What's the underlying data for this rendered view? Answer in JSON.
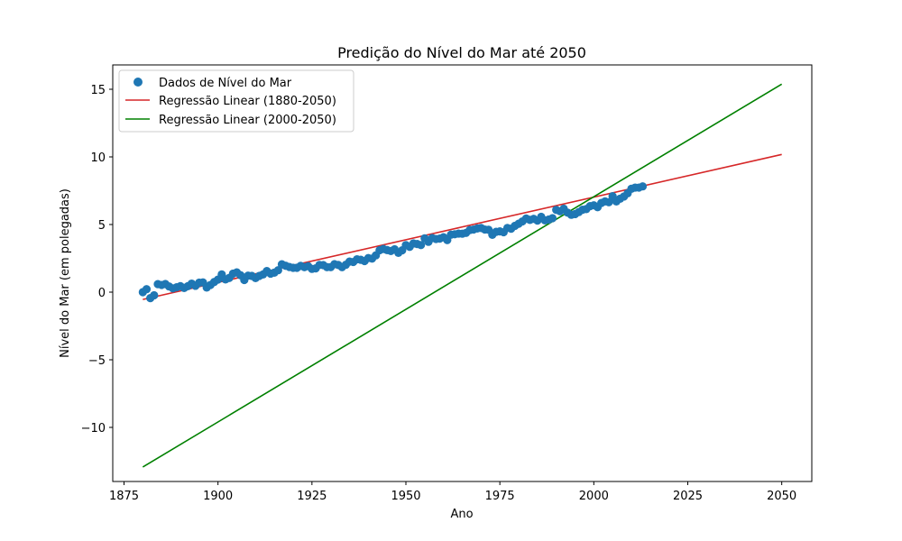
{
  "chart_data": {
    "type": "scatter",
    "title": "Predição do Nível do Mar até 2050",
    "xlabel": "Ano",
    "ylabel": "Nível do Mar (em polegadas)",
    "xlim": [
      1872,
      2058
    ],
    "ylim": [
      -14.0,
      16.8
    ],
    "xticks": [
      1875,
      1900,
      1925,
      1950,
      1975,
      2000,
      2025,
      2050
    ],
    "yticks": [
      -10,
      -5,
      0,
      5,
      10,
      15
    ],
    "grid": false,
    "legend_position": "upper-left",
    "legend": [
      {
        "label": "Dados de Nível do Mar",
        "kind": "marker",
        "color": "#1f77b4"
      },
      {
        "label": "Regressão Linear (1880-2050)",
        "kind": "line",
        "color": "#d62728"
      },
      {
        "label": "Regressão Linear (2000-2050)",
        "kind": "line",
        "color": "#008000"
      }
    ],
    "scatter_series": {
      "name": "Dados de Nível do Mar",
      "color": "#1f77b4",
      "x": [
        1880,
        1881,
        1882,
        1883,
        1884,
        1885,
        1886,
        1887,
        1888,
        1889,
        1890,
        1891,
        1892,
        1893,
        1894,
        1895,
        1896,
        1897,
        1898,
        1899,
        1900,
        1901,
        1902,
        1903,
        1904,
        1905,
        1906,
        1907,
        1908,
        1909,
        1910,
        1911,
        1912,
        1913,
        1914,
        1915,
        1916,
        1917,
        1918,
        1919,
        1920,
        1921,
        1922,
        1923,
        1924,
        1925,
        1926,
        1927,
        1928,
        1929,
        1930,
        1931,
        1932,
        1933,
        1934,
        1935,
        1936,
        1937,
        1938,
        1939,
        1940,
        1941,
        1942,
        1943,
        1944,
        1945,
        1946,
        1947,
        1948,
        1949,
        1950,
        1951,
        1952,
        1953,
        1954,
        1955,
        1956,
        1957,
        1958,
        1959,
        1960,
        1961,
        1962,
        1963,
        1964,
        1965,
        1966,
        1967,
        1968,
        1969,
        1970,
        1971,
        1972,
        1973,
        1974,
        1975,
        1976,
        1977,
        1978,
        1979,
        1980,
        1981,
        1982,
        1983,
        1984,
        1985,
        1986,
        1987,
        1988,
        1989,
        1990,
        1991,
        1992,
        1993,
        1994,
        1995,
        1996,
        1997,
        1998,
        1999,
        2000,
        2001,
        2002,
        2003,
        2004,
        2005,
        2006,
        2007,
        2008,
        2009,
        2010,
        2011,
        2012,
        2013
      ],
      "y": [
        0.0,
        0.22,
        -0.44,
        -0.23,
        0.59,
        0.53,
        0.6,
        0.42,
        0.28,
        0.36,
        0.44,
        0.31,
        0.44,
        0.63,
        0.47,
        0.7,
        0.72,
        0.34,
        0.53,
        0.75,
        0.93,
        1.31,
        0.94,
        1.05,
        1.37,
        1.46,
        1.25,
        0.9,
        1.22,
        1.2,
        1.04,
        1.2,
        1.31,
        1.56,
        1.37,
        1.44,
        1.62,
        2.06,
        1.95,
        1.86,
        1.8,
        1.8,
        1.94,
        1.85,
        1.92,
        1.72,
        1.76,
        2.01,
        2.0,
        1.85,
        1.85,
        2.07,
        2.01,
        1.85,
        2.02,
        2.26,
        2.23,
        2.43,
        2.39,
        2.3,
        2.52,
        2.48,
        2.72,
        3.1,
        3.19,
        3.11,
        3.04,
        3.17,
        2.91,
        3.09,
        3.48,
        3.35,
        3.6,
        3.56,
        3.48,
        3.98,
        3.72,
        4.0,
        3.93,
        3.96,
        4.06,
        3.85,
        4.25,
        4.28,
        4.33,
        4.32,
        4.38,
        4.59,
        4.63,
        4.71,
        4.74,
        4.63,
        4.61,
        4.24,
        4.46,
        4.49,
        4.43,
        4.74,
        4.69,
        4.9,
        5.06,
        5.23,
        5.44,
        5.34,
        5.42,
        5.29,
        5.57,
        5.31,
        5.37,
        5.47,
        6.08,
        5.98,
        6.17,
        5.88,
        5.72,
        5.77,
        5.92,
        6.09,
        6.14,
        6.36,
        6.42,
        6.28,
        6.59,
        6.71,
        6.65,
        7.09,
        6.71,
        6.91,
        7.07,
        7.31,
        7.64,
        7.73,
        7.73,
        7.82
      ]
    },
    "line_series": [
      {
        "name": "Regressão Linear (1880-2050)",
        "color": "#d62728",
        "x": [
          1880,
          2050
        ],
        "y": [
          -0.54,
          10.18
        ]
      },
      {
        "name": "Regressão Linear (2000-2050)",
        "color": "#008000",
        "x": [
          1880,
          2050
        ],
        "y": [
          -12.93,
          15.38
        ]
      }
    ]
  }
}
